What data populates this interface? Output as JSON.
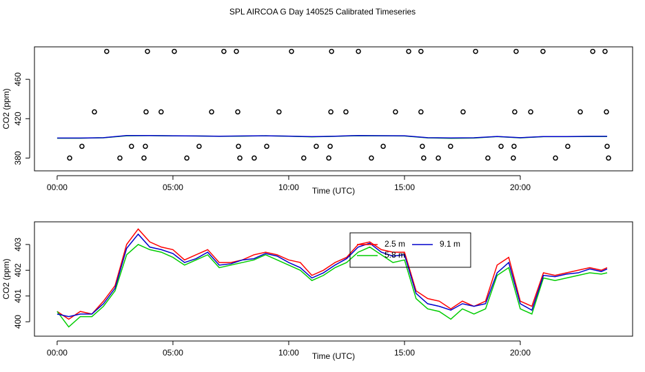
{
  "chart_data": [
    {
      "type": "scatter",
      "title": "SPL AIRCOA G  Day 140525  Calibrated Timeseries",
      "xlabel": "Time (UTC)",
      "ylabel": "CO2 (ppm)",
      "xlim": [
        -0.98,
        24.85
      ],
      "ylim": [
        367,
        493
      ],
      "xticks": [
        {
          "value": 0,
          "label": "00:00"
        },
        {
          "value": 5,
          "label": "05:00"
        },
        {
          "value": 10,
          "label": "10:00"
        },
        {
          "value": 15,
          "label": "15:00"
        },
        {
          "value": 20,
          "label": "20:00"
        }
      ],
      "yticks": [
        380,
        420,
        460
      ],
      "series": [
        {
          "mode": "markers",
          "color": "#000000",
          "x": [
            2.14,
            3.9,
            5.06,
            7.2,
            7.74,
            10.12,
            11.85,
            13.01,
            15.18,
            15.71,
            18.07,
            19.82,
            20.98,
            23.13,
            23.66,
            1.61,
            3.84,
            4.49,
            6.67,
            7.8,
            9.58,
            11.82,
            12.47,
            14.61,
            15.71,
            17.53,
            19.76,
            20.45,
            22.59,
            23.72,
            1.07,
            3.21,
            3.81,
            6.13,
            7.83,
            9.05,
            11.19,
            11.79,
            14.08,
            15.77,
            16.99,
            19.17,
            19.73,
            22.05,
            23.75,
            0.54,
            2.71,
            3.75,
            5.6,
            7.89,
            8.51,
            10.65,
            11.73,
            13.57,
            15.83,
            16.46,
            18.6,
            19.7,
            21.52,
            23.81
          ],
          "values": [
            488.4,
            488.4,
            488.4,
            488.4,
            488.4,
            488.4,
            488.4,
            488.4,
            488.4,
            488.4,
            488.4,
            488.4,
            488.4,
            488.4,
            488.4,
            426.9,
            426.9,
            426.9,
            426.9,
            426.9,
            426.9,
            426.9,
            426.9,
            426.9,
            426.9,
            426.9,
            426.9,
            426.9,
            426.9,
            426.9,
            391.9,
            391.9,
            391.9,
            391.9,
            391.9,
            391.9,
            391.9,
            391.9,
            391.9,
            391.9,
            391.9,
            391.9,
            391.9,
            391.9,
            391.9,
            380,
            380,
            380,
            380,
            380,
            380,
            380,
            380,
            380,
            380,
            380,
            380,
            380,
            380,
            380
          ]
        },
        {
          "mode": "lines",
          "color": "#00cc00",
          "x": [
            0,
            1,
            2,
            3,
            4,
            5,
            6,
            7,
            8,
            9,
            10,
            11,
            12,
            13,
            14,
            15,
            16,
            17,
            18,
            19,
            20,
            21,
            22,
            23,
            23.75
          ],
          "values": [
            400.2,
            400.2,
            400.6,
            402.6,
            402.8,
            402.5,
            402.4,
            402.1,
            402.3,
            402.6,
            402.2,
            401.6,
            402.1,
            402.7,
            402.6,
            402.4,
            400.5,
            400.1,
            400.3,
            401.8,
            400.5,
            401.7,
            401.7,
            401.9,
            401.9
          ]
        },
        {
          "mode": "lines",
          "color": "#0000cc",
          "x": [
            0,
            1,
            2,
            3,
            4,
            5,
            6,
            7,
            8,
            9,
            10,
            11,
            12,
            13,
            14,
            15,
            16,
            17,
            18,
            19,
            20,
            21,
            22,
            23,
            23.75
          ],
          "values": [
            400.3,
            400.3,
            400.7,
            402.85,
            402.9,
            402.65,
            402.45,
            402.2,
            402.4,
            402.65,
            402.3,
            401.7,
            402.2,
            402.9,
            402.7,
            402.6,
            400.7,
            400.45,
            400.6,
            401.9,
            400.7,
            401.8,
            401.85,
            402.05,
            402.05
          ]
        }
      ]
    },
    {
      "type": "line",
      "xlabel": "Time (UTC)",
      "ylabel": "CO2 (ppm)",
      "xlim": [
        -0.98,
        24.85
      ],
      "ylim": [
        399.44,
        403.88
      ],
      "xticks": [
        {
          "value": 0,
          "label": "00:00"
        },
        {
          "value": 5,
          "label": "05:00"
        },
        {
          "value": 10,
          "label": "10:00"
        },
        {
          "value": 15,
          "label": "15:00"
        },
        {
          "value": 20,
          "label": "20:00"
        }
      ],
      "yticks": [
        400,
        401,
        402,
        403
      ],
      "x": [
        0,
        0.5,
        1,
        1.5,
        2,
        2.5,
        3,
        3.5,
        4,
        4.5,
        5,
        5.5,
        6,
        6.5,
        7,
        7.5,
        8,
        8.5,
        9,
        9.5,
        10,
        10.5,
        11,
        11.5,
        12,
        12.5,
        13,
        13.5,
        14,
        14.5,
        15,
        15.5,
        16,
        16.5,
        17,
        17.5,
        18,
        18.5,
        19,
        19.5,
        20,
        20.5,
        21,
        21.5,
        22,
        22.5,
        23,
        23.5,
        23.75
      ],
      "series": [
        {
          "name": "2.5 m",
          "color": "#ff0000",
          "values": [
            400.4,
            400.1,
            400.4,
            400.3,
            400.8,
            401.4,
            403.0,
            403.6,
            403.1,
            402.9,
            402.8,
            402.4,
            402.6,
            402.8,
            402.3,
            402.3,
            402.4,
            402.6,
            402.7,
            402.6,
            402.4,
            402.3,
            401.8,
            402.0,
            402.3,
            402.5,
            403.0,
            403.1,
            402.8,
            402.7,
            402.7,
            401.2,
            400.9,
            400.8,
            400.5,
            400.8,
            400.6,
            400.8,
            402.2,
            402.5,
            400.8,
            400.6,
            401.9,
            401.8,
            401.9,
            402.0,
            402.1,
            402.0,
            402.1
          ]
        },
        {
          "name": "5.8 m",
          "color": "#00cc00",
          "values": [
            400.4,
            399.8,
            400.2,
            400.2,
            400.6,
            401.2,
            402.6,
            403.0,
            402.8,
            402.7,
            402.5,
            402.2,
            402.4,
            402.6,
            402.1,
            402.2,
            402.3,
            402.4,
            402.6,
            402.4,
            402.2,
            402.0,
            401.6,
            401.8,
            402.1,
            402.3,
            402.7,
            402.9,
            402.6,
            402.3,
            402.4,
            400.9,
            400.5,
            400.4,
            400.1,
            400.5,
            400.3,
            400.5,
            401.8,
            402.1,
            400.5,
            400.3,
            401.7,
            401.6,
            401.7,
            401.8,
            401.9,
            401.85,
            401.9
          ]
        },
        {
          "name": "9.1 m",
          "color": "#0000cc",
          "values": [
            400.3,
            400.2,
            400.3,
            400.3,
            400.7,
            401.3,
            402.85,
            403.4,
            402.9,
            402.8,
            402.65,
            402.3,
            402.45,
            402.7,
            402.2,
            402.25,
            402.4,
            402.45,
            402.65,
            402.55,
            402.3,
            402.1,
            401.7,
            401.9,
            402.2,
            402.45,
            402.9,
            403.05,
            402.7,
            402.55,
            402.6,
            401.1,
            400.7,
            400.6,
            400.45,
            400.7,
            400.6,
            400.7,
            401.9,
            402.3,
            400.7,
            400.45,
            401.8,
            401.75,
            401.85,
            401.9,
            402.05,
            401.95,
            402.05
          ]
        }
      ]
    }
  ]
}
